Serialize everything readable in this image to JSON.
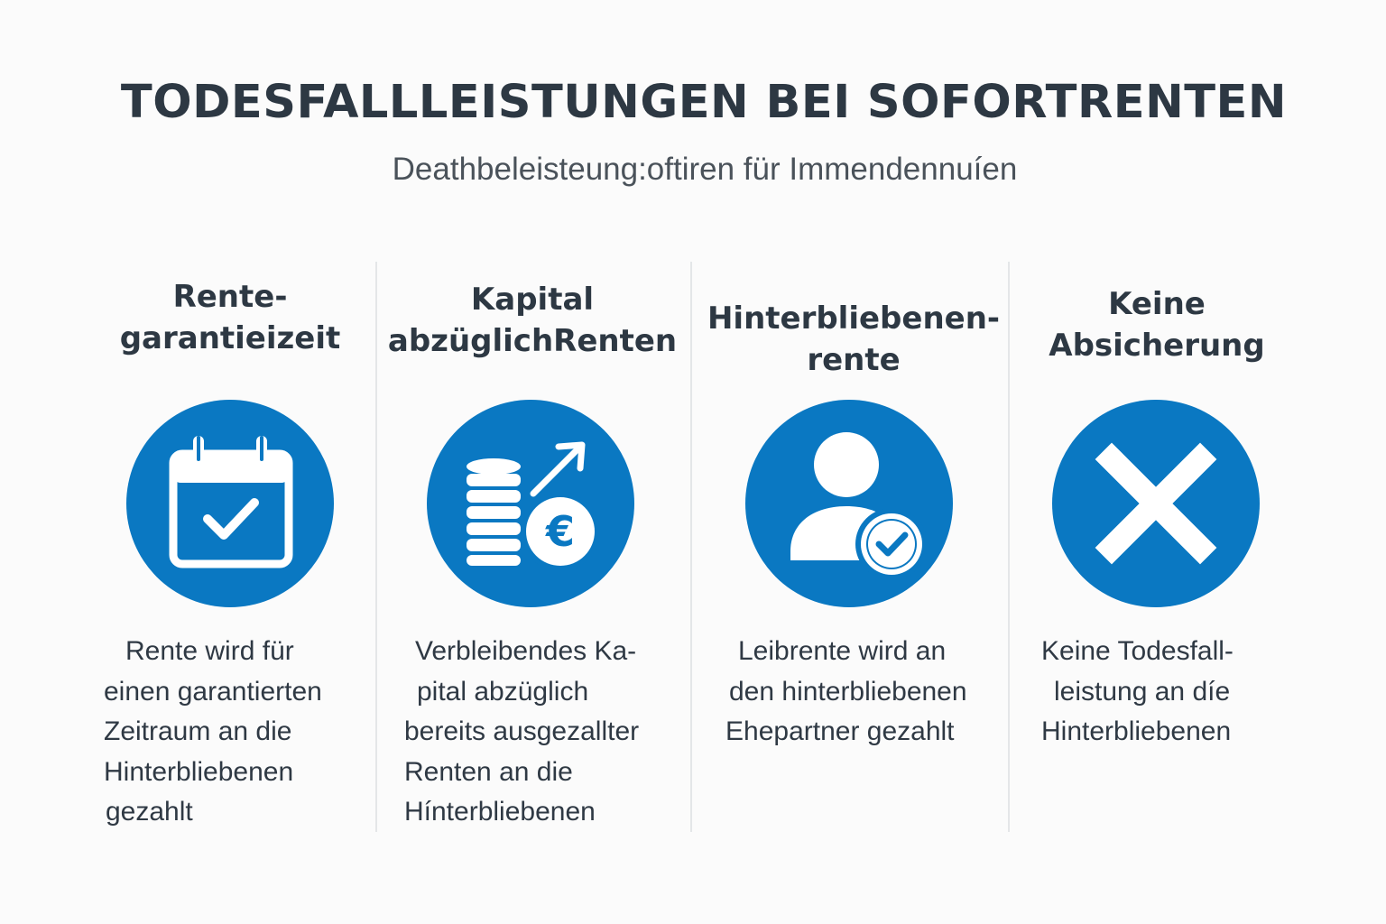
{
  "header": {
    "title": "TODESFALLLEISTUNGEN BEI SOFORTRENTEN",
    "subtitle": "Deathbeleisteung:oftiren für Immendennuíen"
  },
  "colors": {
    "accent": "#0a78c2",
    "text": "#2d3843",
    "divider": "#e4e6e8"
  },
  "columns": [
    {
      "title": [
        "Rente-",
        "garantieizeit"
      ],
      "icon": "calendar-check-icon",
      "description": [
        "Rente wird für",
        "einen garantierten",
        "Zeitraum an die",
        "Hinterbliebenen",
        "gezahlt"
      ]
    },
    {
      "title": [
        "Kapital",
        "abzüglichRenten"
      ],
      "icon": "coins-euro-arrow-icon",
      "icon_symbol": "€",
      "description": [
        "Verbleibendes Ka-",
        "pital abzüglich",
        "bereits ausgezallter",
        "Renten an die",
        "Hínterbliebenen"
      ]
    },
    {
      "title": [
        "Hinterbliebenen-",
        "rente"
      ],
      "icon": "person-check-icon",
      "description": [
        "Leibrente wird an",
        "den hinterbliebenen",
        "Ehepartner gezahlt"
      ]
    },
    {
      "title": [
        "Keine",
        "Absicherung"
      ],
      "icon": "x-mark-icon",
      "description": [
        "Keine Todesfall-",
        "leistung an díe",
        "Hinterbliebenen"
      ]
    }
  ]
}
